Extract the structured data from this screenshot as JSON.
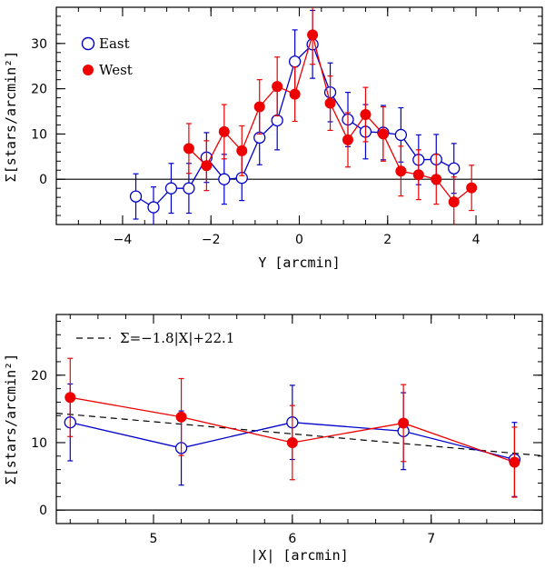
{
  "chart_data": [
    {
      "type": "scatter",
      "xlabel": "Y [arcmin]",
      "ylabel": "Σ[stars/arcmin²]",
      "xlim": [
        -5.5,
        5.5
      ],
      "ylim": [
        -10,
        38
      ],
      "x_ticks": [
        -4,
        -2,
        0,
        2,
        4
      ],
      "x_tick_labels": [
        "−4",
        "−2",
        "0",
        "2",
        "4"
      ],
      "y_ticks": [
        0,
        10,
        20,
        30
      ],
      "y_tick_labels": [
        "0",
        "10",
        "20",
        "30"
      ],
      "zero_line": 0,
      "legend_position": "top-left",
      "series": [
        {
          "name": "East",
          "marker": "open-circle",
          "color": "#0000cc",
          "x": [
            -3.7,
            -3.3,
            -2.9,
            -2.5,
            -2.1,
            -1.7,
            -1.3,
            -0.9,
            -0.5,
            -0.1,
            0.3,
            0.7,
            1.1,
            1.5,
            1.9,
            2.3,
            2.7,
            3.1,
            3.5
          ],
          "y": [
            -3.8,
            -6.2,
            -2.0,
            -2.0,
            4.8,
            0.0,
            0.3,
            9.2,
            13.0,
            26.0,
            29.8,
            19.2,
            13.2,
            10.5,
            10.3,
            9.8,
            4.3,
            4.4,
            2.4
          ],
          "err": [
            5.0,
            4.5,
            5.5,
            5.5,
            5.5,
            5.5,
            5.0,
            6.0,
            6.5,
            7.0,
            7.5,
            6.5,
            6.0,
            6.0,
            6.0,
            6.0,
            5.5,
            5.5,
            5.5
          ]
        },
        {
          "name": "West",
          "marker": "filled-circle",
          "color": "#ee0000",
          "x": [
            -2.5,
            -2.1,
            -1.7,
            -1.3,
            -0.9,
            -0.5,
            -0.1,
            0.3,
            0.7,
            1.1,
            1.5,
            1.9,
            2.3,
            2.7,
            3.1,
            3.5,
            3.9
          ],
          "y": [
            6.8,
            3.0,
            10.5,
            6.3,
            16.0,
            20.5,
            18.8,
            31.9,
            16.8,
            8.7,
            14.3,
            10.0,
            1.8,
            1.0,
            0.0,
            -5.0,
            -1.9
          ],
          "err": [
            5.5,
            5.5,
            6.0,
            5.5,
            6.0,
            6.5,
            6.0,
            6.5,
            6.0,
            6.0,
            6.0,
            6.0,
            5.5,
            5.5,
            5.5,
            5.5,
            5.0
          ]
        }
      ]
    },
    {
      "type": "scatter",
      "xlabel": "|X| [arcmin]",
      "ylabel": "Σ[stars/arcmin²]",
      "xlim": [
        4.3,
        7.8
      ],
      "ylim": [
        -2,
        29
      ],
      "x_ticks": [
        5,
        6,
        7
      ],
      "x_tick_labels": [
        "5",
        "6",
        "7"
      ],
      "y_ticks": [
        0,
        10,
        20
      ],
      "y_tick_labels": [
        "0",
        "10",
        "20"
      ],
      "zero_line": 0,
      "fit": {
        "label": "Σ=−1.8|X|+22.1",
        "slope": -1.8,
        "intercept": 22.1,
        "style": "dashed"
      },
      "series": [
        {
          "name": "East",
          "marker": "open-circle",
          "color": "#0000cc",
          "x": [
            4.4,
            5.2,
            6.0,
            6.8,
            7.6
          ],
          "y": [
            13.0,
            9.2,
            13.0,
            11.7,
            7.5
          ],
          "err": [
            5.7,
            5.5,
            5.5,
            5.7,
            5.5
          ]
        },
        {
          "name": "West",
          "marker": "filled-circle",
          "color": "#ee0000",
          "x": [
            4.4,
            5.2,
            6.0,
            6.8,
            7.6
          ],
          "y": [
            16.7,
            13.8,
            10.0,
            12.9,
            7.1
          ],
          "err": [
            5.8,
            5.7,
            5.5,
            5.7,
            5.2
          ]
        }
      ]
    }
  ]
}
